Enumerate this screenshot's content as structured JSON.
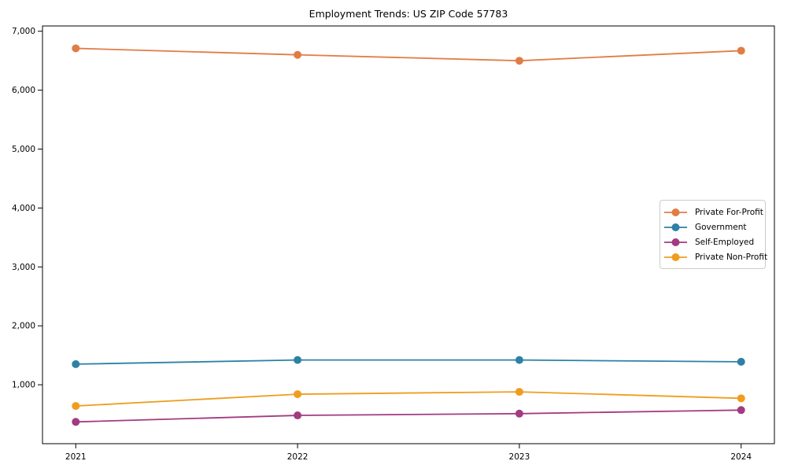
{
  "title": "Employment Trends: US ZIP Code 57783",
  "chart_data": {
    "type": "line",
    "title": "Employment Trends: US ZIP Code 57783",
    "xlabel": "",
    "ylabel": "",
    "x": [
      2021,
      2022,
      2023,
      2024
    ],
    "xtick_labels": [
      "2021",
      "2022",
      "2023",
      "2024"
    ],
    "yticks": [
      1000,
      2000,
      3000,
      4000,
      5000,
      6000,
      7000
    ],
    "ytick_labels": [
      "1,000",
      "2,000",
      "3,000",
      "4,000",
      "5,000",
      "6,000",
      "7,000"
    ],
    "xlim": [
      2020.85,
      2024.15
    ],
    "ylim": [
      0,
      7090
    ],
    "grid": false,
    "legend_position": "right-middle",
    "marker": "circle",
    "axis_color": "#000000",
    "background_color": "#ffffff",
    "series": [
      {
        "name": "Private For-Profit",
        "color": "#E07D45",
        "values": [
          6710,
          6600,
          6500,
          6670
        ]
      },
      {
        "name": "Government",
        "color": "#2E81A4",
        "values": [
          1350,
          1420,
          1420,
          1390
        ]
      },
      {
        "name": "Self-Employed",
        "color": "#A23B80",
        "values": [
          370,
          480,
          510,
          570
        ]
      },
      {
        "name": "Private Non-Profit",
        "color": "#F09D1E",
        "values": [
          640,
          840,
          880,
          770
        ]
      }
    ]
  }
}
